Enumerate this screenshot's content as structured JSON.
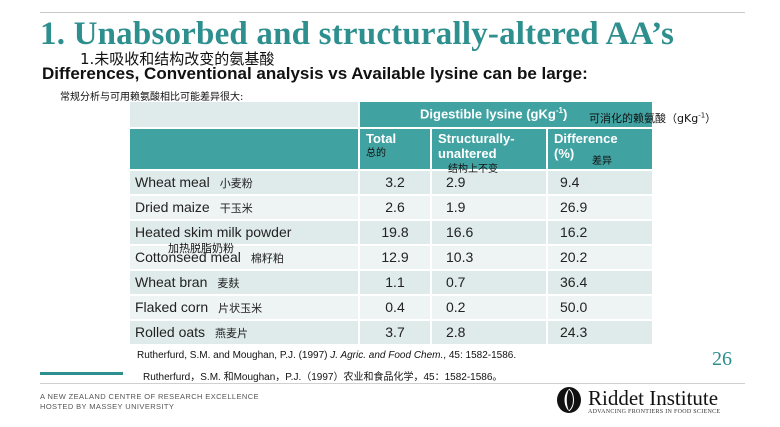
{
  "slide": {
    "title": "1.  Unabsorbed and structurally-altered AA’s",
    "title_cn": "1.未吸收和结构改变的氨基酸",
    "subtitle": "Differences, Conventional analysis vs Available lysine can be large:",
    "subtitle_cn": "常规分析与可用赖氨酸相比可能差异很大:",
    "page_number": "26"
  },
  "table": {
    "group_header": "Digestible lysine (gKg",
    "group_header_sup": "-1",
    "group_header_close": ")",
    "group_header_cn": "可消化的赖氨酸（gKg",
    "group_header_cn_sup": "-1",
    "group_header_cn_close": "）",
    "columns": {
      "total": "Total",
      "total_cn": "总的",
      "struct_line1": "Structurally-",
      "struct_line2": "unaltered",
      "struct_cn": "结构上不变",
      "diff_line1": "Difference",
      "diff_line2": "(%)",
      "diff_cn": "差异"
    },
    "rows": [
      {
        "name": "Wheat meal",
        "name_cn": "小麦粉",
        "total": "3.2",
        "struct": "2.9",
        "diff": "9.4"
      },
      {
        "name": "Dried maize",
        "name_cn": "干玉米",
        "total": "2.6",
        "struct": "1.9",
        "diff": "26.9"
      },
      {
        "name": "Heated skim milk powder",
        "name_cn": "加热脱脂奶粉",
        "total": "19.8",
        "struct": "16.6",
        "diff": "16.2"
      },
      {
        "name": "Cottonseed meal",
        "name_cn": "棉籽粕",
        "total": "12.9",
        "struct": "10.3",
        "diff": "20.2"
      },
      {
        "name": "Wheat bran",
        "name_cn": "麦麸",
        "total": "1.1",
        "struct": "0.7",
        "diff": "36.4"
      },
      {
        "name": "Flaked corn",
        "name_cn": "片状玉米",
        "total": "0.4",
        "struct": "0.2",
        "diff": "50.0"
      },
      {
        "name": "Rolled oats",
        "name_cn": "燕麦片",
        "total": "3.7",
        "struct": "2.8",
        "diff": "24.3"
      }
    ]
  },
  "reference": {
    "line1_prefix": "Rutherfurd, S.M. and Moughan, P.J. (1997) ",
    "line1_journal": "J. Agric. and Food Chem.",
    "line1_suffix": ", 45: 1582-1586.",
    "line2": "Rutherfurd，S.M. 和Moughan，P.J.（1997）农业和食品化学，45：1582-1586。"
  },
  "footer": {
    "line1": "A NEW ZEALAND CENTRE OF RESEARCH EXCELLENCE",
    "line2": "HOSTED BY MASSEY UNIVERSITY"
  },
  "logo": {
    "name": "Riddet Institute",
    "tagline": "ADVANCING FRONTIERS IN FOOD SCIENCE",
    "icon": "riddet-logo-icon"
  },
  "colors": {
    "accent": "#2e8f8f",
    "table_header": "#41a2a2",
    "row_light": "#eef4f4",
    "row_dark": "#dfeaea"
  }
}
